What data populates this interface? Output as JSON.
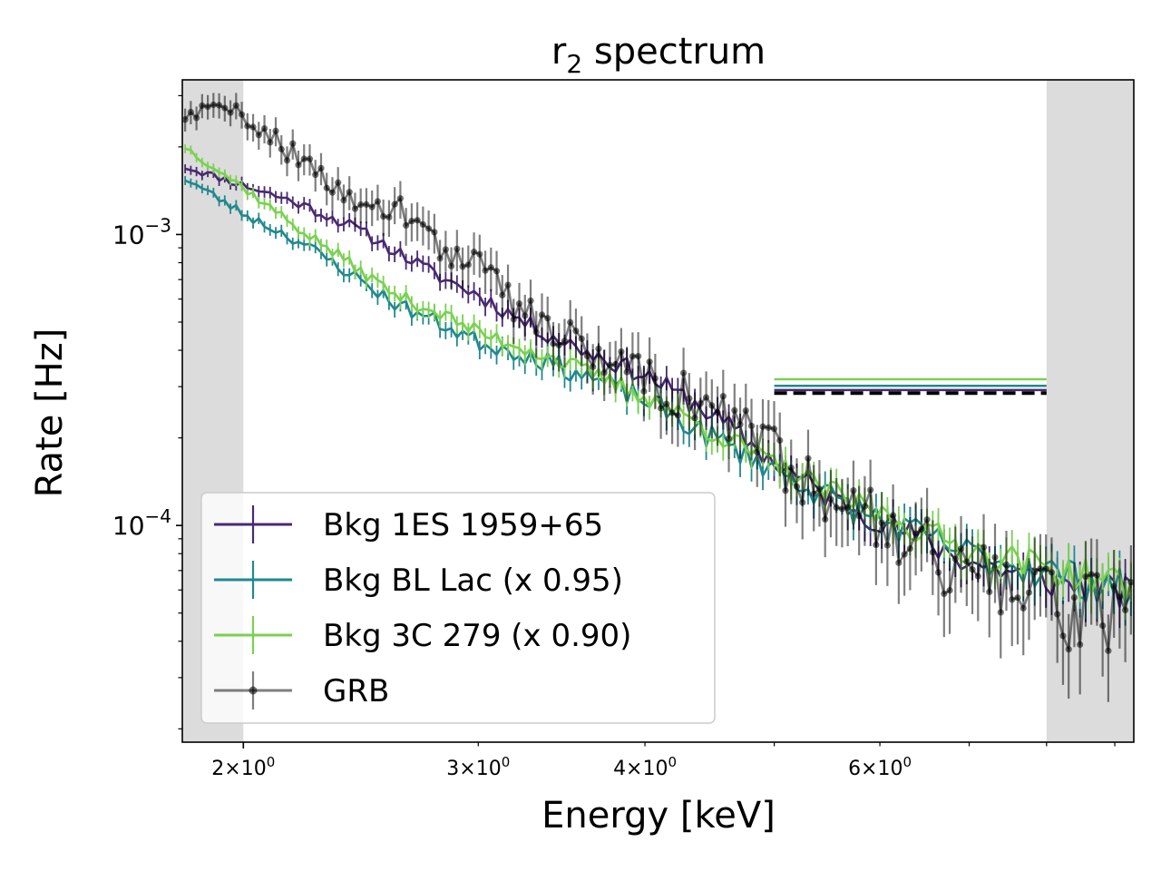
{
  "chart_data": {
    "type": "line",
    "title": "r₂ spectrum",
    "title_main": "r",
    "title_sub": "2",
    "title_rest": " spectrum",
    "xlabel": "Energy [keV]",
    "ylabel": "Rate [Hz]",
    "xscale": "log",
    "yscale": "log",
    "xlim": [
      1.8,
      9.3
    ],
    "ylim": [
      1.8e-05,
      0.0034
    ],
    "x_major_ticks": [
      {
        "value": 2,
        "mant": "2",
        "exp": "0"
      }
    ],
    "x_minor_ticks": [
      {
        "value": 3,
        "mant": "3",
        "exp": "0"
      },
      {
        "value": 4,
        "mant": "4",
        "exp": "0"
      },
      {
        "value": 5,
        "mant": "",
        "exp": ""
      },
      {
        "value": 6,
        "mant": "6",
        "exp": "0"
      },
      {
        "value": 7,
        "mant": "",
        "exp": ""
      },
      {
        "value": 8,
        "mant": "",
        "exp": ""
      },
      {
        "value": 9,
        "mant": "",
        "exp": ""
      }
    ],
    "y_major_ticks": [
      {
        "value": 0.001,
        "base": "10",
        "exp": "−3"
      },
      {
        "value": 0.0001,
        "base": "10",
        "exp": "−4"
      }
    ],
    "shaded_regions": [
      {
        "x0": 1.8,
        "x1": 2.0,
        "color": "#dcdcdc"
      },
      {
        "x0": 8.0,
        "x1": 9.3,
        "color": "#dcdcdc"
      }
    ],
    "reference_lines": [
      {
        "series": "Bkg 3C 279 (x 0.90)",
        "x0": 5.0,
        "x1": 8.0,
        "y": 0.000318,
        "color": "#7ad151",
        "dashed": false
      },
      {
        "series": "Bkg BL Lac (x 0.95)",
        "x0": 5.0,
        "x1": 8.0,
        "y": 0.000302,
        "color": "#21888f",
        "dashed": false
      },
      {
        "series": "Bkg 1ES 1959+65",
        "x0": 5.0,
        "x1": 8.0,
        "y": 0.000292,
        "color": "#482a71",
        "dashed": false
      },
      {
        "series": "GRB",
        "x0": 5.0,
        "x1": 8.0,
        "y": 0.000285,
        "color": "#000000",
        "dashed": true
      }
    ],
    "series": [
      {
        "name": "Bkg 1ES 1959+65",
        "color": "#482a71",
        "marker": false,
        "anchors": [
          [
            1.8,
            0.00172
          ],
          [
            2.0,
            0.00148
          ],
          [
            2.2,
            0.00128
          ],
          [
            2.4,
            0.00108
          ],
          [
            2.6,
            0.00088
          ],
          [
            2.8,
            0.00072
          ],
          [
            3.0,
            0.00062
          ],
          [
            3.3,
            0.00048
          ],
          [
            3.6,
            0.0004
          ],
          [
            4.0,
            0.00033
          ],
          [
            4.5,
            0.00024
          ],
          [
            5.0,
            0.000165
          ],
          [
            5.5,
            0.000125
          ],
          [
            6.0,
            0.000105
          ],
          [
            7.0,
            7.5e-05
          ],
          [
            8.0,
            6.5e-05
          ],
          [
            9.3,
            5.8e-05
          ]
        ],
        "noise": 0.07,
        "seed": 11
      },
      {
        "name": "Bkg BL Lac (x 0.95)",
        "color": "#21888f",
        "marker": false,
        "anchors": [
          [
            1.8,
            0.00158
          ],
          [
            2.0,
            0.00118
          ],
          [
            2.2,
            0.00095
          ],
          [
            2.4,
            0.00074
          ],
          [
            2.6,
            0.00058
          ],
          [
            2.8,
            0.0005
          ],
          [
            3.0,
            0.00043
          ],
          [
            3.3,
            0.00038
          ],
          [
            3.6,
            0.00033
          ],
          [
            4.0,
            0.00027
          ],
          [
            4.5,
            0.0002
          ],
          [
            5.0,
            0.000158
          ],
          [
            5.5,
            0.000125
          ],
          [
            6.0,
            0.000105
          ],
          [
            7.0,
            8e-05
          ],
          [
            8.0,
            7e-05
          ],
          [
            9.3,
            6e-05
          ]
        ],
        "noise": 0.08,
        "seed": 23
      },
      {
        "name": "Bkg 3C 279 (x 0.90)",
        "color": "#7ad151",
        "marker": false,
        "anchors": [
          [
            1.8,
            0.00203
          ],
          [
            2.0,
            0.00145
          ],
          [
            2.2,
            0.00105
          ],
          [
            2.4,
            0.0008
          ],
          [
            2.6,
            0.00062
          ],
          [
            2.8,
            0.00054
          ],
          [
            3.0,
            0.00046
          ],
          [
            3.3,
            0.0004
          ],
          [
            3.6,
            0.00034
          ],
          [
            4.0,
            0.00028
          ],
          [
            4.5,
            0.00021
          ],
          [
            5.0,
            0.000162
          ],
          [
            5.5,
            0.00013
          ],
          [
            6.0,
            0.00011
          ],
          [
            7.0,
            8.3e-05
          ],
          [
            8.0,
            7.2e-05
          ],
          [
            9.3,
            6.2e-05
          ]
        ],
        "noise": 0.07,
        "seed": 37
      },
      {
        "name": "GRB",
        "color": "#000000",
        "marker": true,
        "anchors": [
          [
            1.8,
            0.00255
          ],
          [
            1.9,
            0.0027
          ],
          [
            2.0,
            0.00255
          ],
          [
            2.1,
            0.00225
          ],
          [
            2.2,
            0.0018
          ],
          [
            2.35,
            0.0014
          ],
          [
            2.5,
            0.00135
          ],
          [
            2.7,
            0.0011
          ],
          [
            2.9,
            0.0008
          ],
          [
            3.0,
            0.00078
          ],
          [
            3.2,
            0.00058
          ],
          [
            3.5,
            0.00045
          ],
          [
            4.0,
            0.00033
          ],
          [
            4.5,
            0.00025
          ],
          [
            5.0,
            0.00018
          ],
          [
            5.5,
            0.00013
          ],
          [
            6.0,
            0.00011
          ],
          [
            7.0,
            7e-05
          ],
          [
            8.0,
            5.5e-05
          ],
          [
            9.3,
            5e-05
          ]
        ],
        "noise": 0.16,
        "seed": 59
      }
    ],
    "legend_location": "lower-left"
  }
}
